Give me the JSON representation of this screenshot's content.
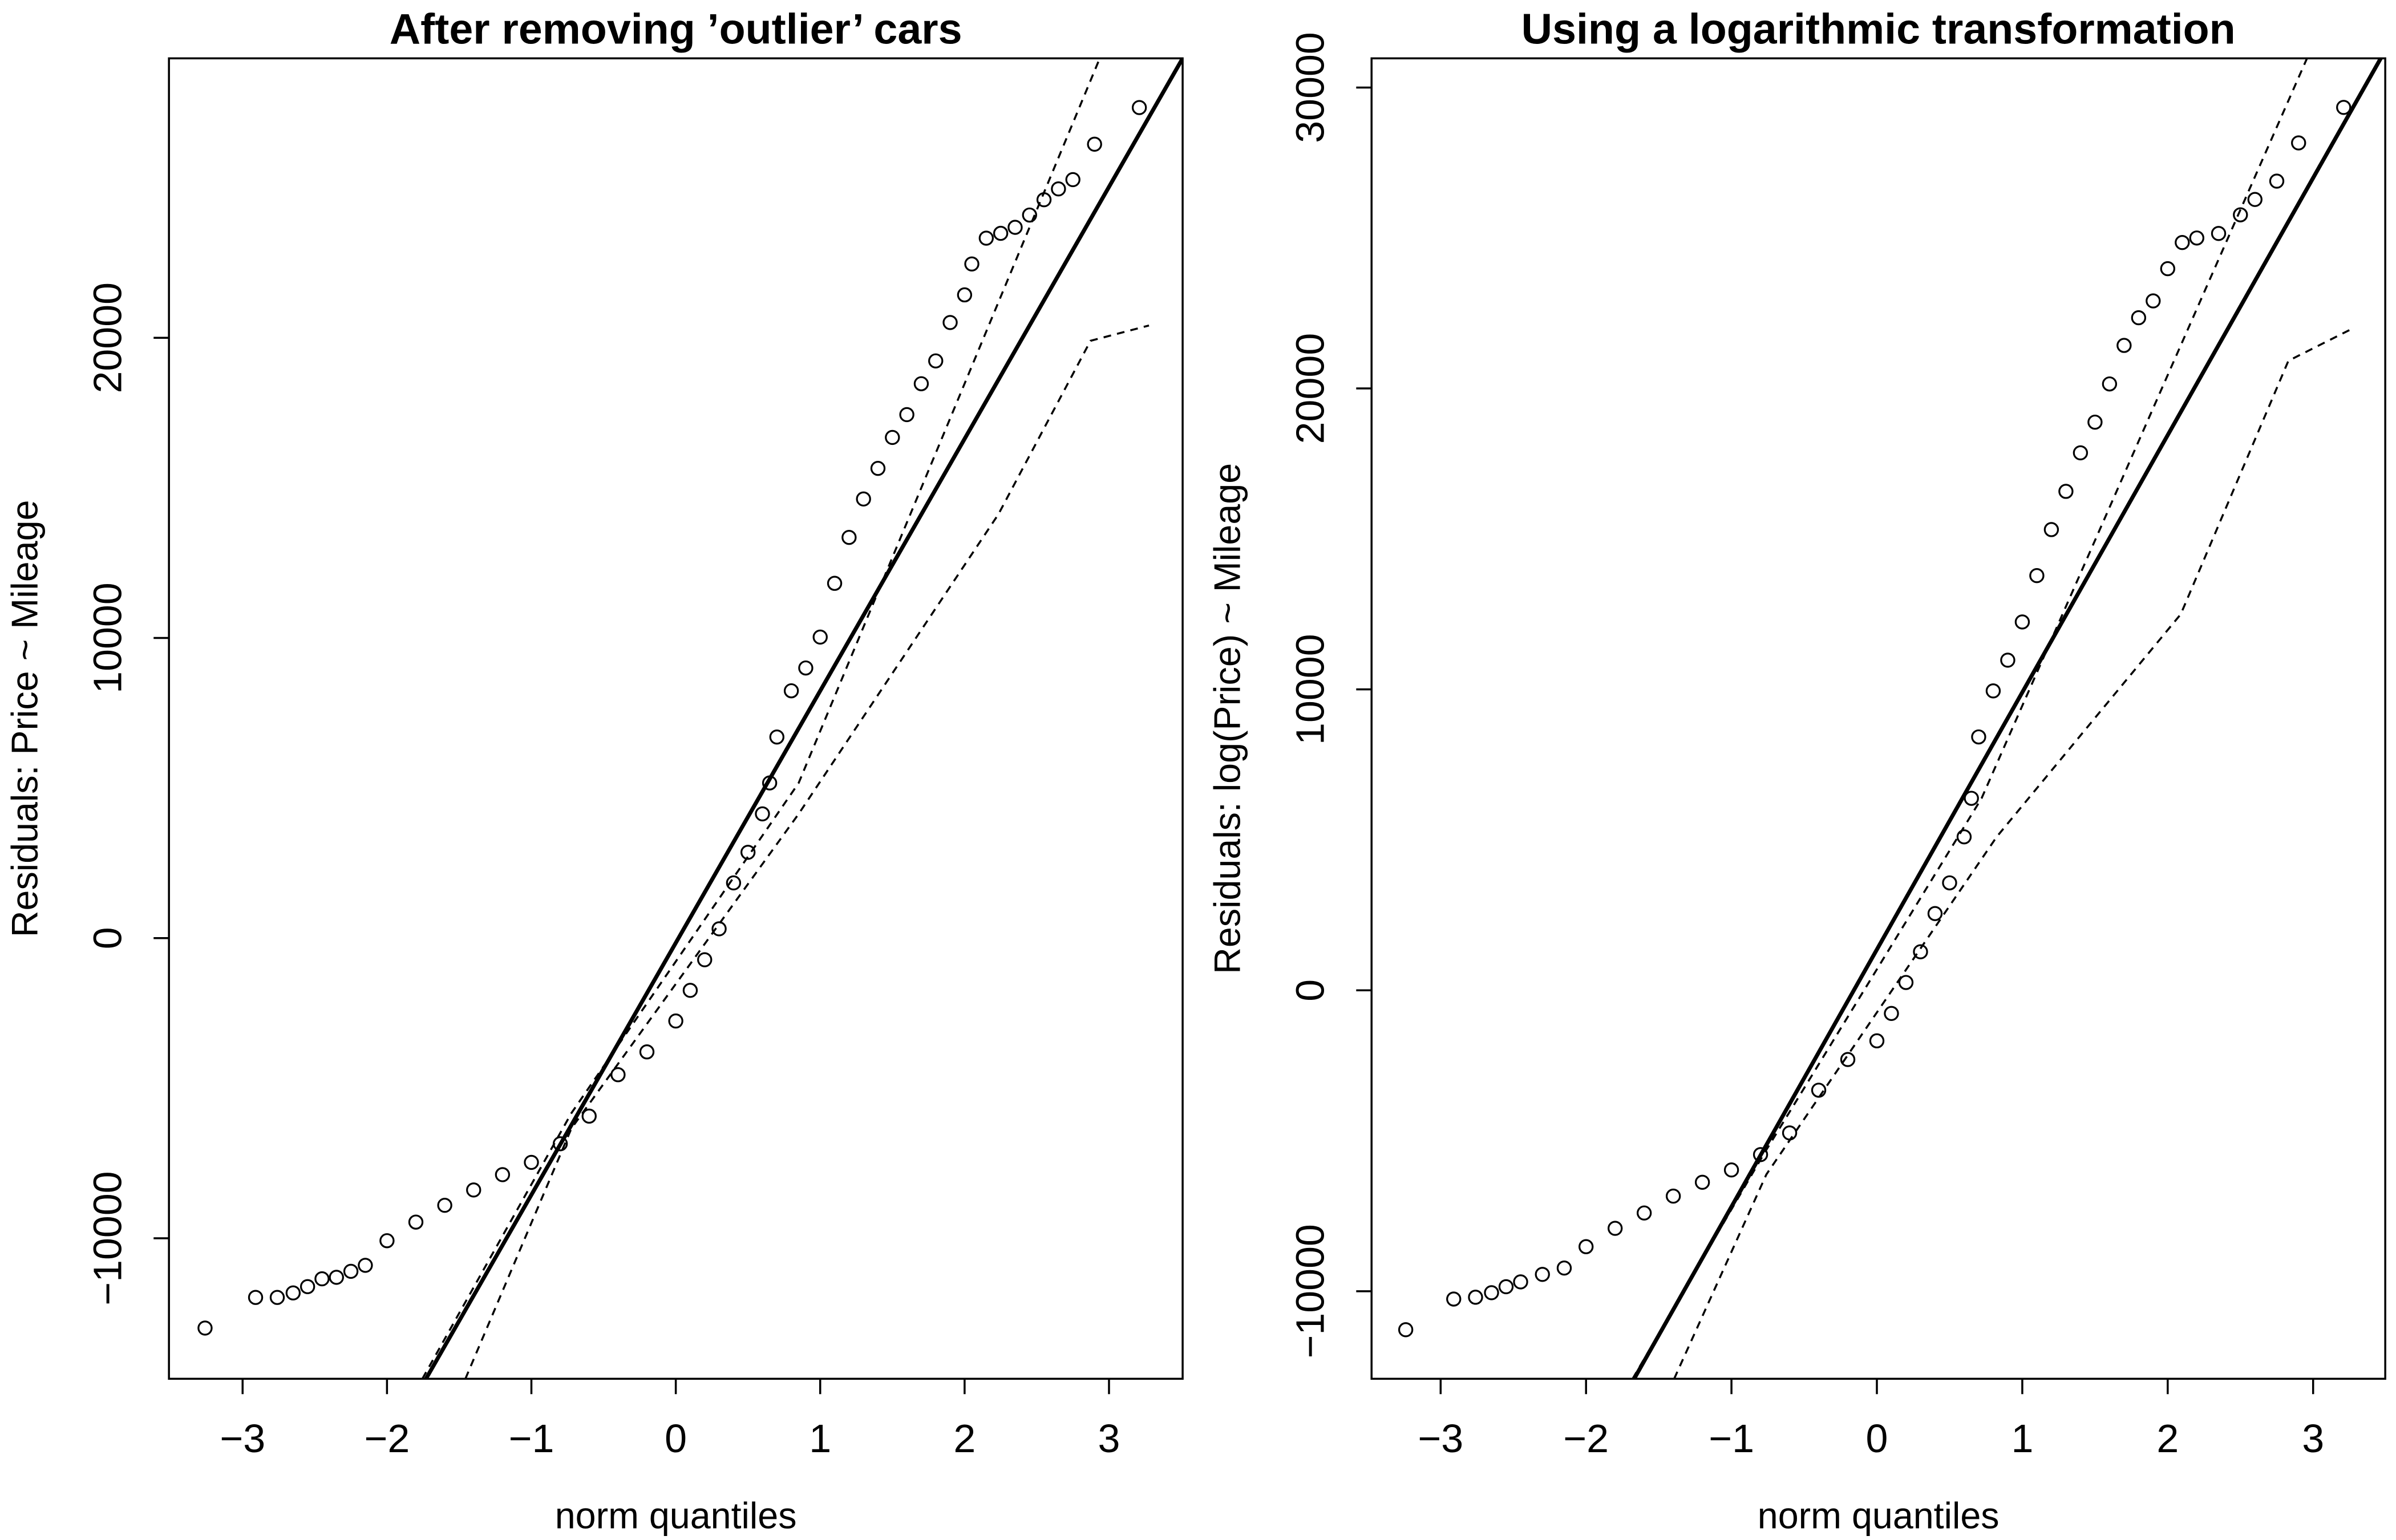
{
  "chart_data": [
    {
      "type": "qq",
      "title": "After removing ’outlier’ cars",
      "xlabel": "norm quantiles",
      "ylabel": "Residuals: Price ~ Mileage",
      "color": "#000000",
      "x": [
        -3.26,
        -2.91,
        -2.76,
        -2.65,
        -2.55,
        -2.45,
        -2.35,
        -2.25,
        -2.15,
        -2.0,
        -1.8,
        -1.6,
        -1.4,
        -1.2,
        -1.0,
        -0.8,
        -0.6,
        -0.4,
        -0.2,
        0.0,
        0.1,
        0.2,
        0.3,
        0.4,
        0.5,
        0.6,
        0.65,
        0.7,
        0.8,
        0.9,
        1.0,
        1.1,
        1.2,
        1.3,
        1.4,
        1.5,
        1.6,
        1.7,
        1.8,
        1.9,
        2.0,
        2.05,
        2.15,
        2.25,
        2.35,
        2.45,
        2.55,
        2.65,
        2.75,
        2.9,
        3.21
      ],
      "values": [
        -12990,
        -11970,
        -11970,
        -11820,
        -11610,
        -11350,
        -11300,
        -11100,
        -10900,
        -10080,
        -9460,
        -8900,
        -8390,
        -7880,
        -7470,
        -6850,
        -5930,
        -4550,
        -3790,
        -2760,
        -1740,
        -720,
        310,
        1840,
        2860,
        4140,
        5170,
        6700,
        8240,
        9000,
        10030,
        11820,
        13350,
        14630,
        15650,
        16680,
        17440,
        18470,
        19230,
        20510,
        21430,
        22460,
        23320,
        23480,
        23680,
        24090,
        24600,
        24960,
        25270,
        26450,
        27670
      ],
      "reference_line": {
        "x": [
          -1.73,
          3.51
        ],
        "values": [
          -14680,
          29310
        ]
      },
      "envelope_upper": {
        "x": [
          -1.755,
          -0.723,
          0.851,
          2.936
        ],
        "values": [
          -14680,
          -5830,
          5170,
          29310
        ]
      },
      "envelope_lower": {
        "x": [
          -1.457,
          -0.723,
          0.851,
          2.234,
          2.872,
          3.277
        ],
        "values": [
          -14680,
          -6340,
          4140,
          14120,
          19900,
          20410
        ]
      },
      "xlim": [
        -3.51,
        3.51
      ],
      "ylim": [
        -14680,
        29310
      ],
      "xticks": [
        {
          "value": -3,
          "label": "−3"
        },
        {
          "value": -2,
          "label": "−2"
        },
        {
          "value": -1,
          "label": "−1"
        },
        0,
        1,
        2,
        3
      ],
      "yticks": [
        {
          "value": -10000,
          "label": "−10000"
        },
        0,
        10000,
        20000
      ]
    },
    {
      "type": "qq",
      "title": "Using a logarithmic transformation",
      "xlabel": "norm quantiles",
      "ylabel": "Residuals: log(Price) ~ Mileage",
      "color": "#000000",
      "x": [
        -3.24,
        -2.91,
        -2.76,
        -2.65,
        -2.55,
        -2.45,
        -2.3,
        -2.15,
        -2.0,
        -1.8,
        -1.6,
        -1.4,
        -1.2,
        -1.0,
        -0.8,
        -0.6,
        -0.4,
        -0.2,
        0.0,
        0.1,
        0.2,
        0.3,
        0.4,
        0.5,
        0.6,
        0.65,
        0.7,
        0.8,
        0.9,
        1.0,
        1.1,
        1.2,
        1.3,
        1.4,
        1.5,
        1.6,
        1.7,
        1.8,
        1.9,
        2.0,
        2.1,
        2.2,
        2.35,
        2.5,
        2.6,
        2.75,
        2.9,
        3.21
      ],
      "values": [
        -11280,
        -10260,
        -10200,
        -10050,
        -9850,
        -9690,
        -9440,
        -9230,
        -8520,
        -7910,
        -7400,
        -6840,
        -6380,
        -5970,
        -5460,
        -4740,
        -3320,
        -2300,
        -1680,
        -770,
        260,
        1280,
        2550,
        3570,
        5100,
        6380,
        8420,
        9950,
        10970,
        12240,
        13780,
        15310,
        16580,
        17860,
        18880,
        20150,
        21430,
        22350,
        22910,
        23980,
        24850,
        25000,
        25150,
        25770,
        26280,
        26890,
        28160,
        29340
      ],
      "reference_line": {
        "x": [
          -1.669,
          3.465
        ],
        "values": [
          -12910,
          30970
        ]
      },
      "envelope_upper": {
        "x": [
          -1.68,
          -0.78,
          0.72,
          2.958
        ],
        "values": [
          -12910,
          -5460,
          6380,
          30970
        ]
      },
      "envelope_lower": {
        "x": [
          -1.394,
          -0.76,
          0.824,
          2.09,
          2.83,
          3.25
        ],
        "values": [
          -12910,
          -6120,
          5100,
          12500,
          20920,
          21940
        ]
      },
      "xlim": [
        -3.475,
        3.496
      ],
      "ylim": [
        -12910,
        30970
      ],
      "xticks": [
        {
          "value": -3,
          "label": "−3"
        },
        {
          "value": -2,
          "label": "−2"
        },
        {
          "value": -1,
          "label": "−1"
        },
        0,
        1,
        2,
        3
      ],
      "yticks": [
        {
          "value": -10000,
          "label": "−10000"
        },
        0,
        10000,
        20000,
        30000
      ]
    }
  ]
}
